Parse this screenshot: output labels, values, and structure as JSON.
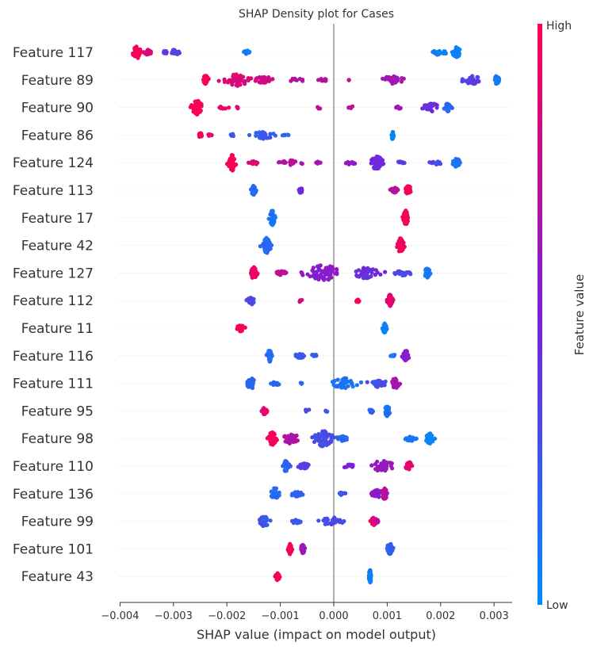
{
  "chart_data": {
    "type": "scatter",
    "subtype": "shap-beeswarm",
    "title": "SHAP Density plot for Cases",
    "xlabel": "SHAP value (impact on model output)",
    "xlim": [
      -0.0041,
      0.0036
    ],
    "xticks": [
      {
        "value": -0.004,
        "label": "−0.004"
      },
      {
        "value": -0.003,
        "label": "−0.003"
      },
      {
        "value": -0.002,
        "label": "−0.002"
      },
      {
        "value": -0.001,
        "label": "−0.001"
      },
      {
        "value": 0.0,
        "label": "0.000"
      },
      {
        "value": 0.001,
        "label": "0.001"
      },
      {
        "value": 0.002,
        "label": "0.002"
      },
      {
        "value": 0.003,
        "label": "0.003"
      }
    ],
    "colorbar": {
      "label": "Feature value",
      "high_label": "High",
      "low_label": "Low",
      "colors": {
        "low": "#008bfb",
        "mid": "#7c1fd8",
        "high": "#ff0051"
      }
    },
    "features": [
      {
        "name": "Feature 117",
        "clusters": [
          [
            -0.00368,
            7e-05,
            45,
            0.95
          ],
          [
            -0.00348,
            7e-05,
            20,
            0.85
          ],
          [
            -0.00298,
            8e-05,
            20,
            0.35
          ],
          [
            -0.00316,
            4e-05,
            10,
            0.4
          ],
          [
            -0.00162,
            6e-05,
            15,
            0.05
          ],
          [
            0.00193,
            6e-05,
            20,
            0.08
          ],
          [
            0.0023,
            7e-05,
            40,
            0.05
          ],
          [
            0.00206,
            4e-05,
            10,
            0.05
          ]
        ]
      },
      {
        "name": "Feature 89",
        "clusters": [
          [
            -0.0024,
            4e-05,
            35,
            1.0
          ],
          [
            -0.0018,
            0.00022,
            45,
            0.85
          ],
          [
            -0.0013,
            0.00016,
            25,
            0.8
          ],
          [
            -0.0007,
            0.00013,
            10,
            0.7
          ],
          [
            -0.0002,
            0.0001,
            8,
            0.7
          ],
          [
            0.00028,
            3e-05,
            2,
            0.8
          ],
          [
            0.0011,
            0.00017,
            30,
            0.65
          ],
          [
            0.0026,
            0.00017,
            30,
            0.35
          ],
          [
            0.00305,
            5e-05,
            30,
            0.12
          ]
        ]
      },
      {
        "name": "Feature 90",
        "clusters": [
          [
            -0.00255,
            9e-05,
            55,
            0.98
          ],
          [
            -0.00207,
            8e-05,
            10,
            0.9
          ],
          [
            -0.0018,
            2e-05,
            3,
            0.9
          ],
          [
            -0.00027,
            2e-05,
            3,
            0.7
          ],
          [
            0.00032,
            5e-05,
            5,
            0.75
          ],
          [
            0.0012,
            6e-05,
            8,
            0.65
          ],
          [
            0.00183,
            0.00014,
            30,
            0.45
          ],
          [
            0.00213,
            5e-05,
            30,
            0.15
          ]
        ]
      },
      {
        "name": "Feature 86",
        "clusters": [
          [
            -0.0025,
            4e-05,
            15,
            0.95
          ],
          [
            -0.00232,
            4e-05,
            5,
            0.9
          ],
          [
            -0.0019,
            3e-05,
            4,
            0.25
          ],
          [
            -0.00135,
            0.0002,
            30,
            0.22
          ],
          [
            -0.0009,
            5e-05,
            6,
            0.15
          ],
          [
            0.0011,
            2e-05,
            30,
            0.05
          ]
        ]
      },
      {
        "name": "Feature 124",
        "clusters": [
          [
            -0.0019,
            6e-05,
            60,
            0.98
          ],
          [
            -0.0015,
            8e-05,
            15,
            0.85
          ],
          [
            -0.0008,
            0.00016,
            20,
            0.72
          ],
          [
            -0.0003,
            5e-05,
            5,
            0.65
          ],
          [
            0.0003,
            0.00012,
            15,
            0.6
          ],
          [
            0.0008,
            0.0001,
            50,
            0.45
          ],
          [
            0.00125,
            6e-05,
            10,
            0.35
          ],
          [
            0.0019,
            0.0001,
            15,
            0.3
          ],
          [
            0.0023,
            6e-05,
            35,
            0.1
          ]
        ]
      },
      {
        "name": "Feature 113",
        "clusters": [
          [
            -0.0015,
            4e-05,
            35,
            0.15
          ],
          [
            -0.00062,
            4e-05,
            20,
            0.45
          ],
          [
            0.00113,
            6e-05,
            20,
            0.7
          ],
          [
            0.0014,
            5e-05,
            35,
            0.95
          ]
        ]
      },
      {
        "name": "Feature 17",
        "clusters": [
          [
            -0.00115,
            4e-05,
            55,
            0.1
          ],
          [
            0.00135,
            4e-05,
            55,
            0.97
          ]
        ]
      },
      {
        "name": "Feature 42",
        "clusters": [
          [
            -0.00125,
            6e-05,
            65,
            0.15
          ],
          [
            0.00125,
            5e-05,
            55,
            0.95
          ]
        ]
      },
      {
        "name": "Feature 127",
        "clusters": [
          [
            -0.0015,
            5e-05,
            45,
            0.92
          ],
          [
            -0.001,
            0.00012,
            15,
            0.75
          ],
          [
            -0.0002,
            0.00028,
            60,
            0.55
          ],
          [
            0.0006,
            0.00022,
            40,
            0.45
          ],
          [
            0.0013,
            0.00012,
            20,
            0.3
          ],
          [
            0.00175,
            5e-05,
            35,
            0.08
          ]
        ]
      },
      {
        "name": "Feature 112",
        "clusters": [
          [
            -0.00155,
            5e-05,
            35,
            0.3
          ],
          [
            -0.00062,
            2e-05,
            4,
            0.8
          ],
          [
            0.00045,
            3e-05,
            12,
            0.98
          ],
          [
            0.00105,
            4e-05,
            45,
            0.9
          ]
        ]
      },
      {
        "name": "Feature 11",
        "clusters": [
          [
            -0.00175,
            6e-05,
            25,
            0.97
          ],
          [
            0.00095,
            3e-05,
            40,
            0.05
          ]
        ]
      },
      {
        "name": "Feature 116",
        "clusters": [
          [
            -0.0012,
            4e-05,
            45,
            0.15
          ],
          [
            -0.00063,
            6e-05,
            20,
            0.25
          ],
          [
            -0.00035,
            3e-05,
            8,
            0.2
          ],
          [
            0.0011,
            4e-05,
            6,
            0.1
          ],
          [
            0.00135,
            5e-05,
            40,
            0.55
          ]
        ]
      },
      {
        "name": "Feature 111",
        "clusters": [
          [
            -0.00155,
            7e-05,
            40,
            0.18
          ],
          [
            -0.0011,
            8e-05,
            15,
            0.15
          ],
          [
            -0.0006,
            3e-05,
            3,
            0.2
          ],
          [
            0.0002,
            0.0002,
            40,
            0.12
          ],
          [
            0.00085,
            0.00012,
            30,
            0.28
          ],
          [
            0.00115,
            6e-05,
            40,
            0.65
          ]
        ]
      },
      {
        "name": "Feature 95",
        "clusters": [
          [
            -0.0013,
            4e-05,
            25,
            0.9
          ],
          [
            -0.0005,
            6e-05,
            8,
            0.3
          ],
          [
            -0.00015,
            3e-05,
            4,
            0.25
          ],
          [
            0.0007,
            4e-05,
            15,
            0.2
          ],
          [
            0.001,
            4e-05,
            40,
            0.1
          ]
        ]
      },
      {
        "name": "Feature 98",
        "clusters": [
          [
            -0.00115,
            6e-05,
            50,
            0.95
          ],
          [
            -0.0008,
            0.00012,
            40,
            0.7
          ],
          [
            -0.0002,
            0.00015,
            60,
            0.3
          ],
          [
            0.00015,
            8e-05,
            20,
            0.15
          ],
          [
            0.0018,
            6e-05,
            40,
            0.05
          ],
          [
            0.00145,
            0.0001,
            20,
            0.1
          ]
        ]
      },
      {
        "name": "Feature 110",
        "clusters": [
          [
            -0.0009,
            5e-05,
            40,
            0.2
          ],
          [
            -0.00055,
            0.00015,
            20,
            0.35
          ],
          [
            0.0003,
            8e-05,
            12,
            0.5
          ],
          [
            0.0009,
            0.0002,
            40,
            0.6
          ],
          [
            0.0014,
            5e-05,
            35,
            0.92
          ]
        ]
      },
      {
        "name": "Feature 136",
        "clusters": [
          [
            -0.0011,
            6e-05,
            45,
            0.15
          ],
          [
            -0.0007,
            0.0001,
            20,
            0.2
          ],
          [
            0.00015,
            8e-05,
            10,
            0.25
          ],
          [
            0.0008,
            8e-05,
            30,
            0.55
          ],
          [
            0.00095,
            5e-05,
            40,
            0.72
          ]
        ]
      },
      {
        "name": "Feature 99",
        "clusters": [
          [
            -0.0013,
            8e-05,
            40,
            0.25
          ],
          [
            -0.0007,
            0.0001,
            15,
            0.25
          ],
          [
            -5e-05,
            0.00018,
            30,
            0.3
          ],
          [
            0.00075,
            4e-05,
            30,
            0.9
          ],
          [
            0.0008,
            4e-05,
            15,
            0.75
          ]
        ]
      },
      {
        "name": "Feature 101",
        "clusters": [
          [
            -0.00082,
            3e-05,
            40,
            0.97
          ],
          [
            -0.00058,
            3e-05,
            35,
            0.6
          ],
          [
            0.00105,
            5e-05,
            40,
            0.2
          ]
        ]
      },
      {
        "name": "Feature 43",
        "clusters": [
          [
            -0.00105,
            3e-05,
            30,
            0.98
          ],
          [
            0.00068,
            2e-05,
            50,
            0.05
          ]
        ]
      }
    ]
  }
}
